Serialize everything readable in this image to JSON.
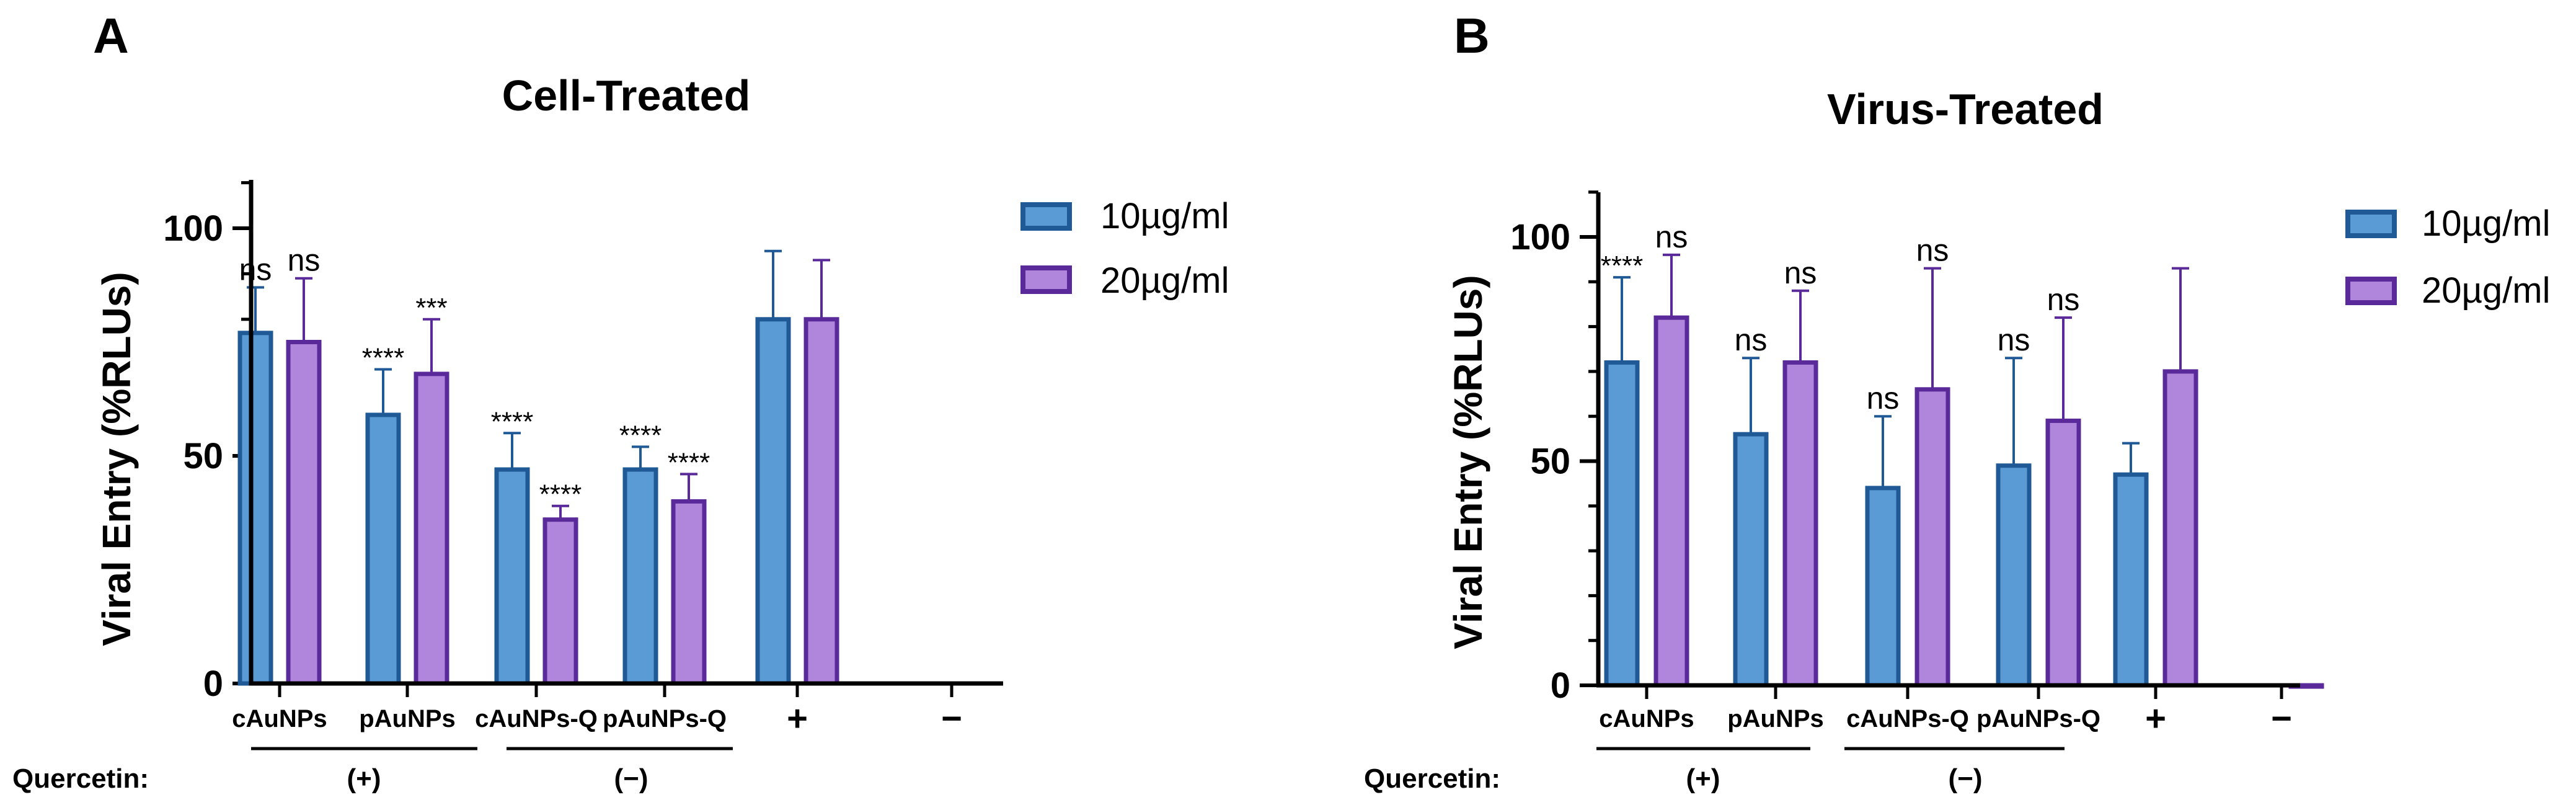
{
  "colors": {
    "series1": "#5b9bd5",
    "series1_edge": "#1f5a96",
    "series2": "#b085dc",
    "series2_edge": "#5b2a9a",
    "axis": "#000000"
  },
  "footer": {
    "quercetin_label": "Quercetin:",
    "plus_group": "(+)",
    "minus_group": "(−)"
  },
  "chart_data": [
    {
      "panel": "A",
      "type": "bar",
      "title": "Cell-Treated",
      "ylabel": "Viral Entry (%RLUs)",
      "xlabel": "",
      "ylim": [
        0,
        110
      ],
      "yticks": [
        0,
        50,
        100
      ],
      "grid": false,
      "legend_position": "right",
      "categories": [
        "cAuNPs",
        "pAuNPs",
        "cAuNPs-Q",
        "pAuNPs-Q",
        "+",
        "−"
      ],
      "series": [
        {
          "name": "10µg/ml",
          "values": [
            77,
            59,
            47,
            47,
            80,
            null
          ],
          "errors": [
            10,
            10,
            8,
            5,
            15,
            null
          ],
          "labels": [
            "ns",
            "****",
            "****",
            "****",
            "",
            ""
          ]
        },
        {
          "name": "20µg/ml",
          "values": [
            75,
            68,
            36,
            40,
            80,
            null
          ],
          "errors": [
            14,
            12,
            3,
            6,
            13,
            null
          ],
          "labels": [
            "ns",
            "***",
            "****",
            "****",
            "",
            ""
          ]
        }
      ]
    },
    {
      "panel": "B",
      "type": "bar",
      "title": "Virus-Treated",
      "ylabel": "Viral Entry (%RLUs)",
      "xlabel": "",
      "ylim": [
        0,
        110
      ],
      "yticks": [
        0,
        50,
        100
      ],
      "grid": false,
      "legend_position": "right",
      "categories": [
        "cAuNPs",
        "pAuNPs",
        "cAuNPs-Q",
        "pAuNPs-Q",
        "+",
        "−"
      ],
      "series": [
        {
          "name": "10µg/ml",
          "values": [
            72,
            56,
            44,
            49,
            47,
            null
          ],
          "errors": [
            19,
            17,
            16,
            24,
            7,
            null
          ],
          "labels": [
            "****",
            "ns",
            "ns",
            "ns",
            "",
            ""
          ]
        },
        {
          "name": "20µg/ml",
          "values": [
            82,
            72,
            66,
            59,
            70,
            0
          ],
          "errors": [
            14,
            16,
            27,
            23,
            23,
            0
          ],
          "labels": [
            "ns",
            "ns",
            "ns",
            "ns",
            "",
            ""
          ]
        }
      ]
    }
  ]
}
